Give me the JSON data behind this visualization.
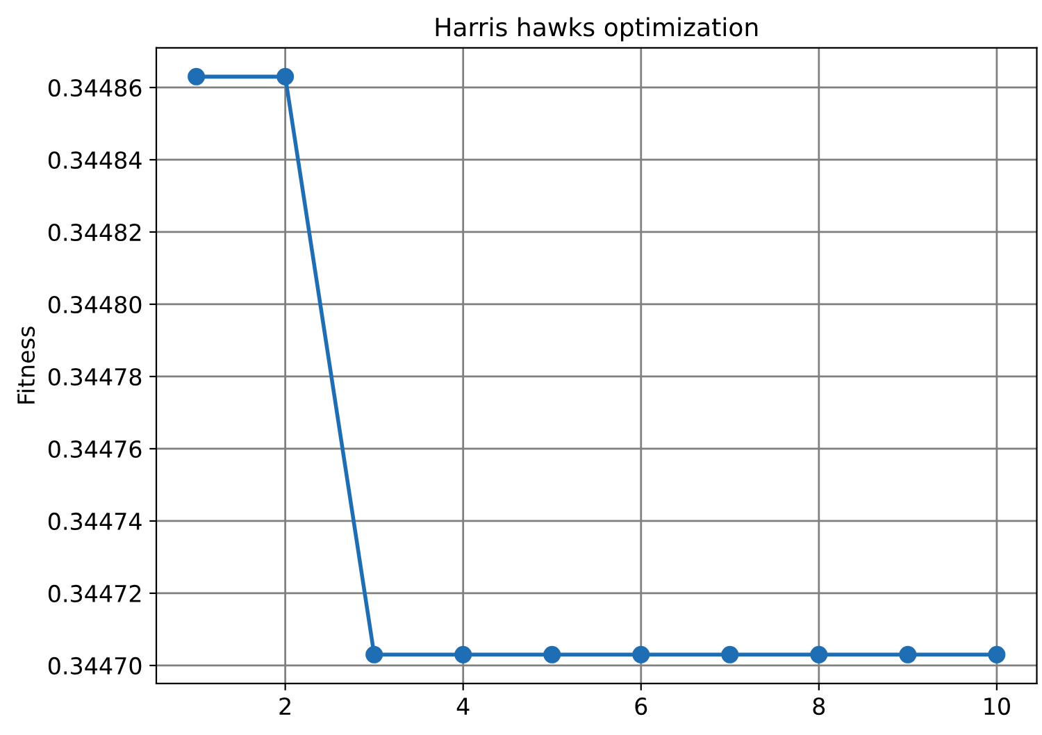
{
  "chart_data": {
    "type": "line",
    "title": "Harris hawks optimization",
    "ylabel": "Fitness",
    "x": [
      1,
      2,
      3,
      4,
      5,
      6,
      7,
      8,
      9,
      10
    ],
    "series": [
      {
        "color": "#1f6db3",
        "values": [
          0.344863,
          0.344863,
          0.344703,
          0.344703,
          0.344703,
          0.344703,
          0.344703,
          0.344703,
          0.344703,
          0.344703
        ]
      }
    ],
    "xlim": [
      0.55,
      10.45
    ],
    "xticks": [
      2,
      4,
      6,
      8,
      10
    ],
    "ylim": [
      0.344695,
      0.344871
    ],
    "yticks": [
      {
        "value": 0.3447,
        "label": "0.34470"
      },
      {
        "value": 0.34472,
        "label": "0.34472"
      },
      {
        "value": 0.34474,
        "label": "0.34474"
      },
      {
        "value": 0.34476,
        "label": "0.34476"
      },
      {
        "value": 0.34478,
        "label": "0.34478"
      },
      {
        "value": 0.3448,
        "label": "0.34480"
      },
      {
        "value": 0.34482,
        "label": "0.34482"
      },
      {
        "value": 0.34484,
        "label": "0.34484"
      },
      {
        "value": 0.34486,
        "label": "0.34486"
      }
    ],
    "grid": true,
    "marker": "circle",
    "line_style": "solid"
  }
}
